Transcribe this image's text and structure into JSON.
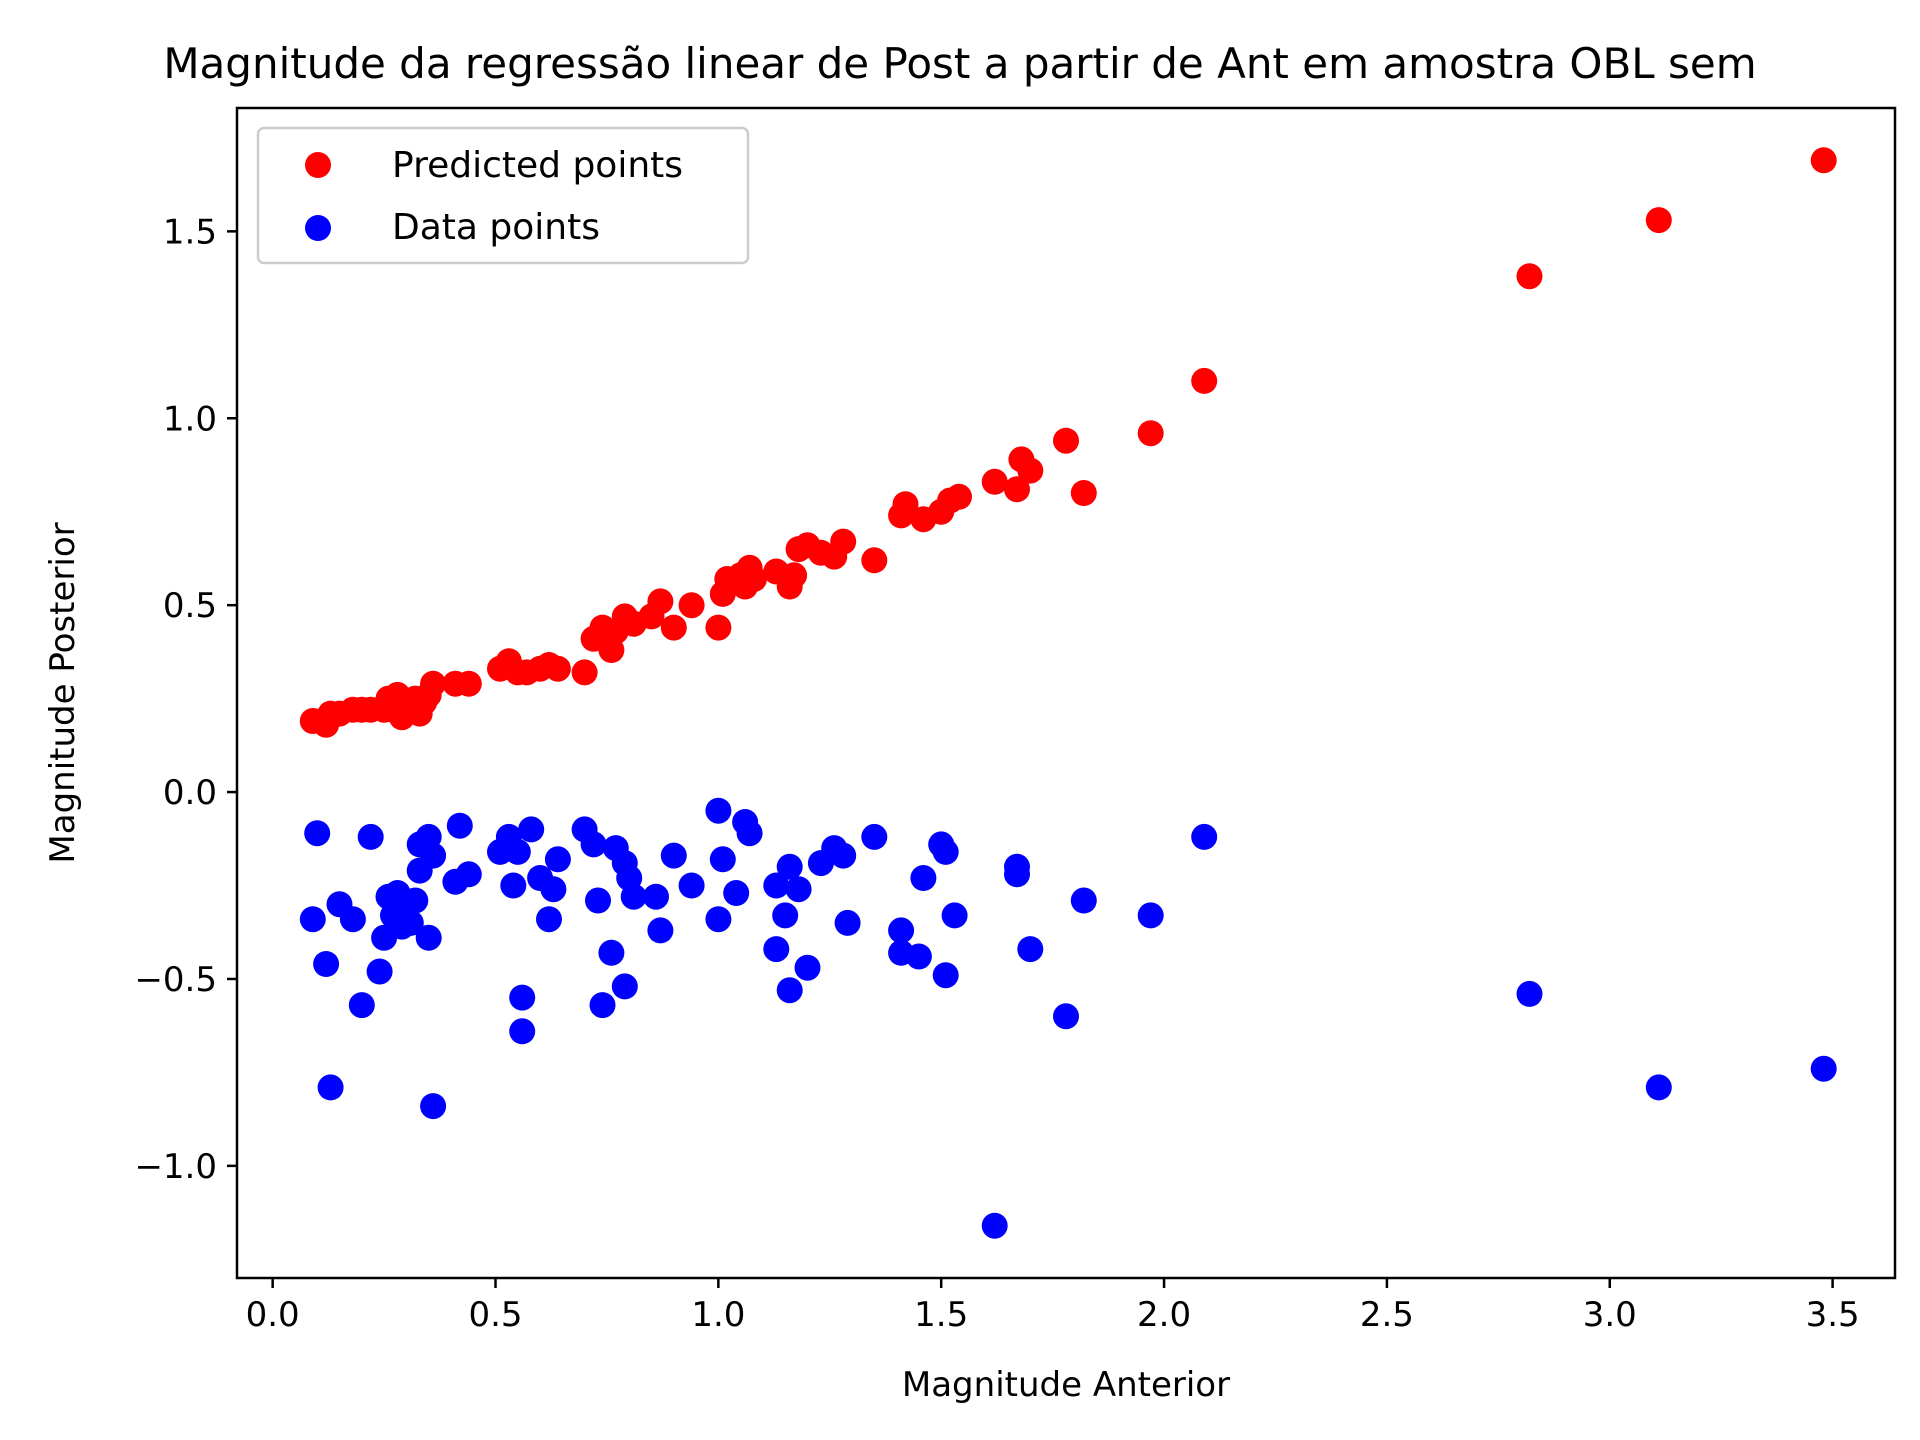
{
  "chart_data": {
    "type": "scatter",
    "title": "Magnitude da regressão linear de Post a partir de Ant em amostra OBL sem",
    "xlabel": "Magnitude Anterior",
    "ylabel": "Magnitude Posterior",
    "xlim": [
      -0.08,
      3.64
    ],
    "ylim": [
      -1.3,
      1.83
    ],
    "xticks": [
      0.0,
      0.5,
      1.0,
      1.5,
      2.0,
      2.5,
      3.0,
      3.5
    ],
    "xtick_labels": [
      "0.0",
      "0.5",
      "1.0",
      "1.5",
      "2.0",
      "2.5",
      "3.0",
      "3.5"
    ],
    "yticks": [
      -1.0,
      -0.5,
      0.0,
      0.5,
      1.0,
      1.5
    ],
    "ytick_labels": [
      "−1.0",
      "−0.5",
      "0.0",
      "0.5",
      "1.0",
      "1.5"
    ],
    "grid": false,
    "legend_position": "top-left",
    "series": [
      {
        "name": "Predicted points",
        "color": "#ff0000",
        "points": [
          [
            0.09,
            0.19
          ],
          [
            0.11,
            0.19
          ],
          [
            0.12,
            0.18
          ],
          [
            0.13,
            0.21
          ],
          [
            0.15,
            0.21
          ],
          [
            0.18,
            0.22
          ],
          [
            0.2,
            0.22
          ],
          [
            0.22,
            0.22
          ],
          [
            0.25,
            0.22
          ],
          [
            0.26,
            0.25
          ],
          [
            0.27,
            0.22
          ],
          [
            0.28,
            0.26
          ],
          [
            0.29,
            0.2
          ],
          [
            0.3,
            0.24
          ],
          [
            0.31,
            0.23
          ],
          [
            0.32,
            0.25
          ],
          [
            0.33,
            0.21
          ],
          [
            0.34,
            0.24
          ],
          [
            0.35,
            0.26
          ],
          [
            0.36,
            0.29
          ],
          [
            0.41,
            0.29
          ],
          [
            0.44,
            0.29
          ],
          [
            0.51,
            0.33
          ],
          [
            0.53,
            0.35
          ],
          [
            0.55,
            0.32
          ],
          [
            0.57,
            0.32
          ],
          [
            0.6,
            0.33
          ],
          [
            0.62,
            0.34
          ],
          [
            0.64,
            0.33
          ],
          [
            0.7,
            0.32
          ],
          [
            0.72,
            0.41
          ],
          [
            0.74,
            0.44
          ],
          [
            0.76,
            0.38
          ],
          [
            0.77,
            0.43
          ],
          [
            0.79,
            0.47
          ],
          [
            0.81,
            0.45
          ],
          [
            0.85,
            0.47
          ],
          [
            0.87,
            0.51
          ],
          [
            0.9,
            0.44
          ],
          [
            0.94,
            0.5
          ],
          [
            1.0,
            0.44
          ],
          [
            1.01,
            0.53
          ],
          [
            1.02,
            0.57
          ],
          [
            1.05,
            0.58
          ],
          [
            1.06,
            0.55
          ],
          [
            1.07,
            0.6
          ],
          [
            1.08,
            0.57
          ],
          [
            1.13,
            0.59
          ],
          [
            1.16,
            0.55
          ],
          [
            1.17,
            0.58
          ],
          [
            1.18,
            0.65
          ],
          [
            1.2,
            0.66
          ],
          [
            1.23,
            0.64
          ],
          [
            1.26,
            0.63
          ],
          [
            1.28,
            0.67
          ],
          [
            1.35,
            0.62
          ],
          [
            1.41,
            0.74
          ],
          [
            1.42,
            0.77
          ],
          [
            1.46,
            0.73
          ],
          [
            1.5,
            0.75
          ],
          [
            1.52,
            0.78
          ],
          [
            1.54,
            0.79
          ],
          [
            1.62,
            0.83
          ],
          [
            1.67,
            0.81
          ],
          [
            1.68,
            0.89
          ],
          [
            1.7,
            0.86
          ],
          [
            1.78,
            0.94
          ],
          [
            1.82,
            0.8
          ],
          [
            1.97,
            0.96
          ],
          [
            2.09,
            1.1
          ],
          [
            2.82,
            1.38
          ],
          [
            3.11,
            1.53
          ],
          [
            3.48,
            1.69
          ]
        ]
      },
      {
        "name": "Data points",
        "color": "#0000ff",
        "points": [
          [
            0.1,
            -0.11
          ],
          [
            0.09,
            -0.34
          ],
          [
            0.12,
            -0.46
          ],
          [
            0.13,
            -0.79
          ],
          [
            0.15,
            -0.3
          ],
          [
            0.18,
            -0.34
          ],
          [
            0.2,
            -0.57
          ],
          [
            0.22,
            -0.12
          ],
          [
            0.24,
            -0.48
          ],
          [
            0.25,
            -0.39
          ],
          [
            0.26,
            -0.28
          ],
          [
            0.27,
            -0.33
          ],
          [
            0.28,
            -0.27
          ],
          [
            0.29,
            -0.36
          ],
          [
            0.3,
            -0.3
          ],
          [
            0.31,
            -0.35
          ],
          [
            0.33,
            -0.14
          ],
          [
            0.32,
            -0.29
          ],
          [
            0.33,
            -0.21
          ],
          [
            0.35,
            -0.12
          ],
          [
            0.36,
            -0.17
          ],
          [
            0.35,
            -0.39
          ],
          [
            0.36,
            -0.84
          ],
          [
            0.42,
            -0.09
          ],
          [
            0.41,
            -0.24
          ],
          [
            0.44,
            -0.22
          ],
          [
            0.51,
            -0.16
          ],
          [
            0.53,
            -0.12
          ],
          [
            0.54,
            -0.25
          ],
          [
            0.55,
            -0.16
          ],
          [
            0.56,
            -0.64
          ],
          [
            0.56,
            -0.55
          ],
          [
            0.58,
            -0.1
          ],
          [
            0.6,
            -0.23
          ],
          [
            0.62,
            -0.34
          ],
          [
            0.63,
            -0.26
          ],
          [
            0.64,
            -0.18
          ],
          [
            0.7,
            -0.1
          ],
          [
            0.72,
            -0.14
          ],
          [
            0.73,
            -0.29
          ],
          [
            0.74,
            -0.57
          ],
          [
            0.76,
            -0.43
          ],
          [
            0.77,
            -0.15
          ],
          [
            0.79,
            -0.19
          ],
          [
            0.8,
            -0.23
          ],
          [
            0.81,
            -0.28
          ],
          [
            0.79,
            -0.52
          ],
          [
            0.86,
            -0.28
          ],
          [
            0.87,
            -0.37
          ],
          [
            0.9,
            -0.17
          ],
          [
            0.94,
            -0.25
          ],
          [
            1.0,
            -0.05
          ],
          [
            1.01,
            -0.18
          ],
          [
            1.0,
            -0.34
          ],
          [
            1.04,
            -0.27
          ],
          [
            1.06,
            -0.08
          ],
          [
            1.07,
            -0.11
          ],
          [
            1.13,
            -0.25
          ],
          [
            1.13,
            -0.42
          ],
          [
            1.15,
            -0.33
          ],
          [
            1.16,
            -0.2
          ],
          [
            1.16,
            -0.53
          ],
          [
            1.18,
            -0.26
          ],
          [
            1.2,
            -0.47
          ],
          [
            1.23,
            -0.19
          ],
          [
            1.26,
            -0.15
          ],
          [
            1.28,
            -0.17
          ],
          [
            1.29,
            -0.35
          ],
          [
            1.35,
            -0.12
          ],
          [
            1.41,
            -0.37
          ],
          [
            1.41,
            -0.43
          ],
          [
            1.45,
            -0.44
          ],
          [
            1.46,
            -0.23
          ],
          [
            1.5,
            -0.14
          ],
          [
            1.51,
            -0.16
          ],
          [
            1.51,
            -0.49
          ],
          [
            1.53,
            -0.33
          ],
          [
            1.62,
            -1.16
          ],
          [
            1.67,
            -0.2
          ],
          [
            1.67,
            -0.22
          ],
          [
            1.7,
            -0.42
          ],
          [
            1.78,
            -0.6
          ],
          [
            1.82,
            -0.29
          ],
          [
            1.97,
            -0.33
          ],
          [
            2.09,
            -0.12
          ],
          [
            2.82,
            -0.54
          ],
          [
            3.11,
            -0.79
          ],
          [
            3.48,
            -0.74
          ]
        ]
      }
    ]
  }
}
